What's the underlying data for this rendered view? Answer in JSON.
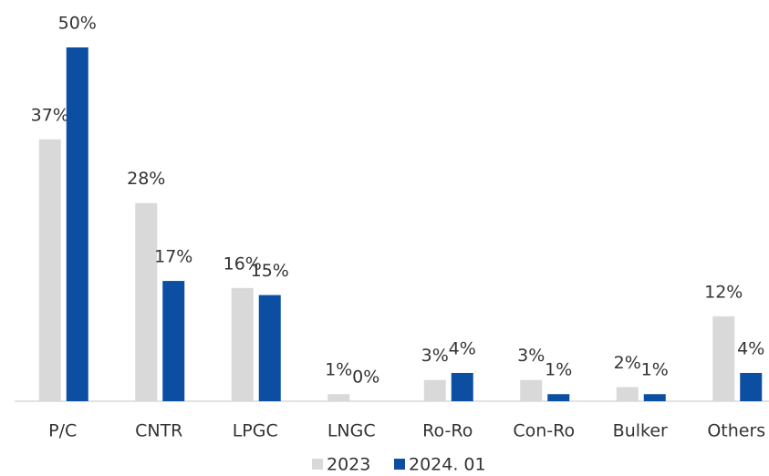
{
  "chart_data": {
    "type": "bar",
    "categories": [
      "P/C",
      "CNTR",
      "LPGC",
      "LNGC",
      "Ro-Ro",
      "Con-Ro",
      "Bulker",
      "Others"
    ],
    "series": [
      {
        "name": "2023",
        "color": "#d9d9d9",
        "values": [
          37,
          28,
          16,
          1,
          3,
          3,
          2,
          12
        ],
        "value_labels": [
          "37%",
          "28%",
          "16%",
          "1%",
          "3%",
          "3%",
          "2%",
          "12%"
        ]
      },
      {
        "name": "2024. 01",
        "color": "#0b4ea2",
        "values": [
          50,
          17,
          15,
          0,
          4,
          1,
          1,
          4
        ],
        "value_labels": [
          "50%",
          "17%",
          "15%",
          "0%",
          "4%",
          "1%",
          "1%",
          "4%"
        ]
      }
    ]
  }
}
